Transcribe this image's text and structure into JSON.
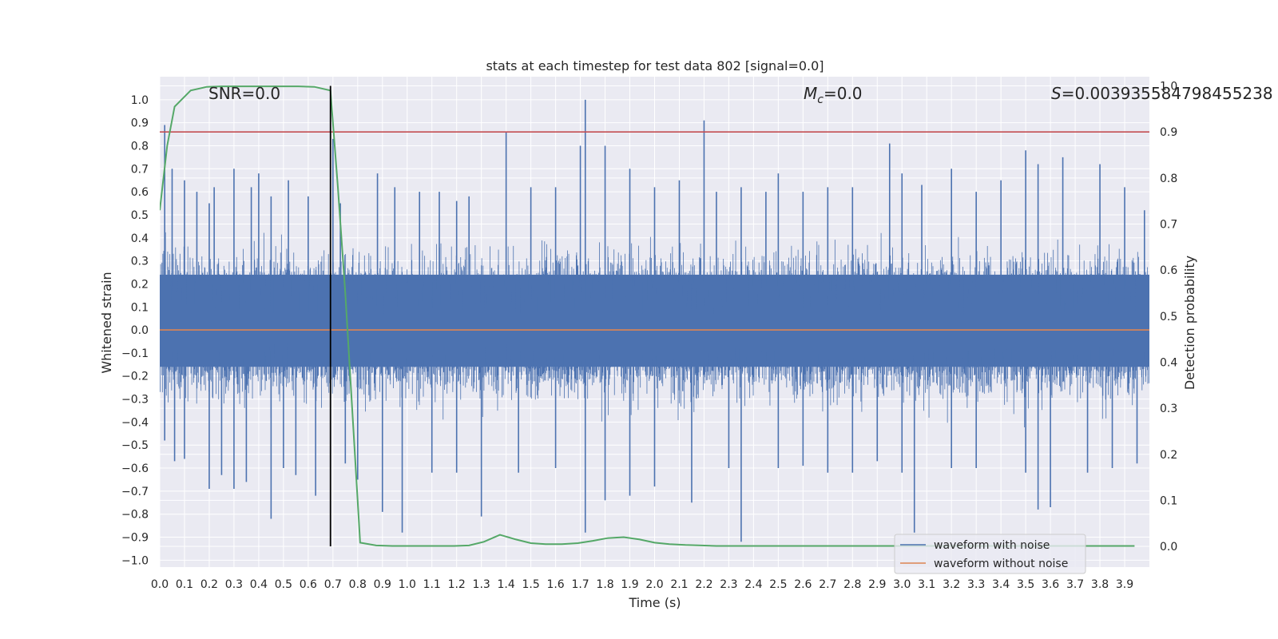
{
  "chart_data": {
    "type": "line",
    "title": "stats at each timestep for test data 802 [signal=0.0]",
    "xlabel": "Time (s)",
    "ylabel": "Whitened strain",
    "y2label": "Detection probability",
    "xlim": [
      0.0,
      4.0
    ],
    "ylim": [
      -1.03,
      1.1
    ],
    "y2lim": [
      -0.045,
      1.02
    ],
    "x_ticks": [
      "0.0",
      "0.1",
      "0.2",
      "0.3",
      "0.4",
      "0.5",
      "0.6",
      "0.7",
      "0.8",
      "0.9",
      "1.0",
      "1.1",
      "1.2",
      "1.3",
      "1.4",
      "1.5",
      "1.6",
      "1.7",
      "1.8",
      "1.9",
      "2.0",
      "2.1",
      "2.2",
      "2.3",
      "2.4",
      "2.5",
      "2.6",
      "2.7",
      "2.8",
      "2.9",
      "3.0",
      "3.1",
      "3.2",
      "3.3",
      "3.4",
      "3.5",
      "3.6",
      "3.7",
      "3.8",
      "3.9"
    ],
    "y_ticks": [
      "−1.0",
      "−0.9",
      "−0.8",
      "−0.7",
      "−0.6",
      "−0.5",
      "−0.4",
      "−0.3",
      "−0.2",
      "−0.1",
      "0.0",
      "0.1",
      "0.2",
      "0.3",
      "0.4",
      "0.5",
      "0.6",
      "0.7",
      "0.8",
      "0.9",
      "1.0"
    ],
    "y2_ticks": [
      "0.0",
      "0.1",
      "0.2",
      "0.3",
      "0.4",
      "0.5",
      "0.6",
      "0.7",
      "0.8",
      "0.9",
      "1.0"
    ],
    "grid": true,
    "legend_position": "bottom-right",
    "annotations": {
      "snr": "SNR=0.0",
      "mc_symbol": "M",
      "mc_sub": "c",
      "mc_value": "=0.0",
      "s_symbol": "S",
      "s_value": "=0.003935584798455238"
    },
    "noise_spikes": {
      "note": "sampled peak amplitudes of the noisy waveform (data units)",
      "positive_x": [
        0.02,
        0.05,
        0.1,
        0.15,
        0.2,
        0.22,
        0.3,
        0.37,
        0.4,
        0.45,
        0.52,
        0.6,
        0.7,
        0.73,
        0.88,
        0.95,
        1.05,
        1.13,
        1.2,
        1.25,
        1.4,
        1.5,
        1.6,
        1.7,
        1.72,
        1.8,
        1.9,
        2.0,
        2.1,
        2.2,
        2.25,
        2.35,
        2.45,
        2.5,
        2.6,
        2.7,
        2.8,
        2.95,
        3.0,
        3.08,
        3.2,
        3.3,
        3.4,
        3.5,
        3.55,
        3.65,
        3.8,
        3.9,
        3.98
      ],
      "positive_y": [
        0.89,
        0.7,
        0.65,
        0.6,
        0.55,
        0.62,
        0.7,
        0.62,
        0.68,
        0.58,
        0.65,
        0.58,
        0.83,
        0.55,
        0.68,
        0.62,
        0.6,
        0.6,
        0.56,
        0.58,
        0.86,
        0.62,
        0.62,
        0.8,
        1.0,
        0.8,
        0.7,
        0.62,
        0.65,
        0.91,
        0.6,
        0.62,
        0.6,
        0.68,
        0.6,
        0.62,
        0.62,
        0.81,
        0.68,
        0.63,
        0.7,
        0.6,
        0.65,
        0.78,
        0.72,
        0.75,
        0.72,
        0.62,
        0.52
      ],
      "negative_x": [
        0.02,
        0.06,
        0.1,
        0.2,
        0.25,
        0.3,
        0.35,
        0.45,
        0.5,
        0.55,
        0.63,
        0.75,
        0.8,
        0.9,
        0.98,
        1.1,
        1.2,
        1.3,
        1.45,
        1.6,
        1.72,
        1.8,
        1.9,
        2.0,
        2.15,
        2.3,
        2.35,
        2.5,
        2.6,
        2.7,
        2.8,
        2.9,
        3.0,
        3.05,
        3.2,
        3.3,
        3.5,
        3.55,
        3.6,
        3.75,
        3.85,
        3.95
      ],
      "negative_y": [
        -0.48,
        -0.57,
        -0.56,
        -0.69,
        -0.63,
        -0.69,
        -0.66,
        -0.82,
        -0.6,
        -0.63,
        -0.72,
        -0.58,
        -0.65,
        -0.79,
        -0.88,
        -0.62,
        -0.62,
        -0.81,
        -0.62,
        -0.6,
        -0.88,
        -0.74,
        -0.72,
        -0.68,
        -0.75,
        -0.6,
        -0.92,
        -0.6,
        -0.59,
        -0.62,
        -0.62,
        -0.57,
        -0.62,
        -0.88,
        -0.6,
        -0.6,
        -0.62,
        -0.78,
        -0.77,
        -0.62,
        -0.6,
        -0.58
      ]
    },
    "series": [
      {
        "name": "waveform with noise",
        "color": "#4c72b0",
        "axis": "left"
      },
      {
        "name": "waveform without noise",
        "color": "#dd8452",
        "axis": "left",
        "x": [
          0.0,
          4.0
        ],
        "y": [
          0.0,
          0.0
        ]
      },
      {
        "color": "#55a868",
        "axis": "right",
        "x": [
          0.0,
          0.03,
          0.06,
          0.125,
          0.19,
          0.25,
          0.31,
          0.375,
          0.44,
          0.5,
          0.56,
          0.625,
          0.69,
          0.72,
          0.75,
          0.81,
          0.875,
          0.94,
          1.0,
          1.06,
          1.125,
          1.19,
          1.25,
          1.31,
          1.375,
          1.44,
          1.5,
          1.56,
          1.625,
          1.69,
          1.75,
          1.81,
          1.875,
          1.94,
          2.0,
          2.06,
          2.125,
          2.19,
          2.25,
          2.5,
          3.0,
          3.5,
          3.94
        ],
        "y": [
          0.73,
          0.87,
          0.955,
          0.99,
          0.998,
          0.999,
          0.999,
          0.999,
          0.999,
          0.999,
          0.999,
          0.998,
          0.99,
          0.78,
          0.55,
          0.008,
          0.002,
          0.001,
          0.001,
          0.001,
          0.001,
          0.001,
          0.002,
          0.01,
          0.025,
          0.015,
          0.007,
          0.005,
          0.005,
          0.007,
          0.012,
          0.018,
          0.02,
          0.015,
          0.008,
          0.005,
          0.003,
          0.002,
          0.001,
          0.001,
          0.001,
          0.001,
          0.001
        ]
      }
    ],
    "threshold_line": {
      "value": 0.9,
      "axis": "right",
      "color": "#c44e52"
    },
    "vertical_marker": {
      "x": 0.69,
      "color": "#000000"
    }
  }
}
